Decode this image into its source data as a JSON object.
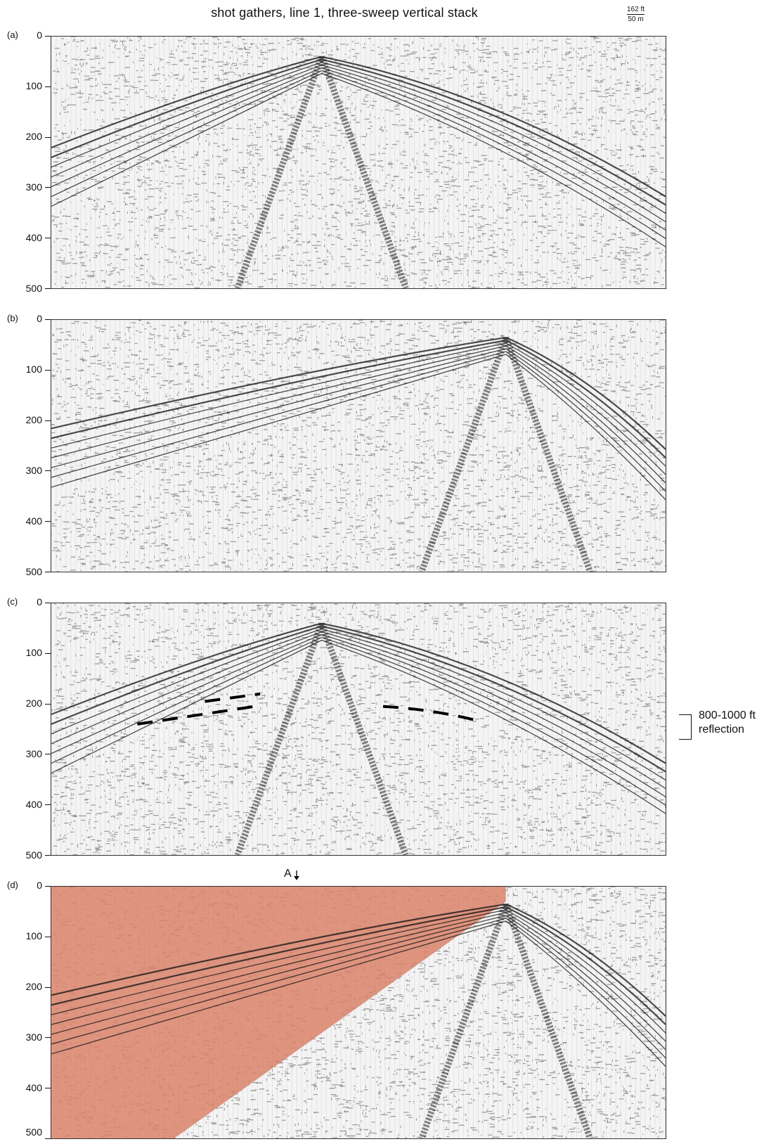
{
  "figure": {
    "title": "shot gathers, line 1, three-sweep vertical stack",
    "scale_ft": "162 ft",
    "scale_m": "50 m",
    "annotation_reflection": [
      "800-1000 ft",
      "reflection"
    ],
    "marker_label": "A",
    "highlight_color": "#d9826a",
    "y_ticks": [
      "0",
      "100",
      "200",
      "300",
      "400",
      "500"
    ],
    "y_range": [
      0,
      500
    ],
    "panels": [
      {
        "letter": "(a)",
        "apex_x": 0.44,
        "apex_t": 40,
        "interpreted": false,
        "highlight": false
      },
      {
        "letter": "(b)",
        "apex_x": 0.74,
        "apex_t": 35,
        "interpreted": false,
        "highlight": false
      },
      {
        "letter": "(c)",
        "apex_x": 0.44,
        "apex_t": 40,
        "interpreted": true,
        "highlight": false
      },
      {
        "letter": "(d)",
        "apex_x": 0.74,
        "apex_t": 35,
        "interpreted": false,
        "highlight": true
      }
    ]
  }
}
